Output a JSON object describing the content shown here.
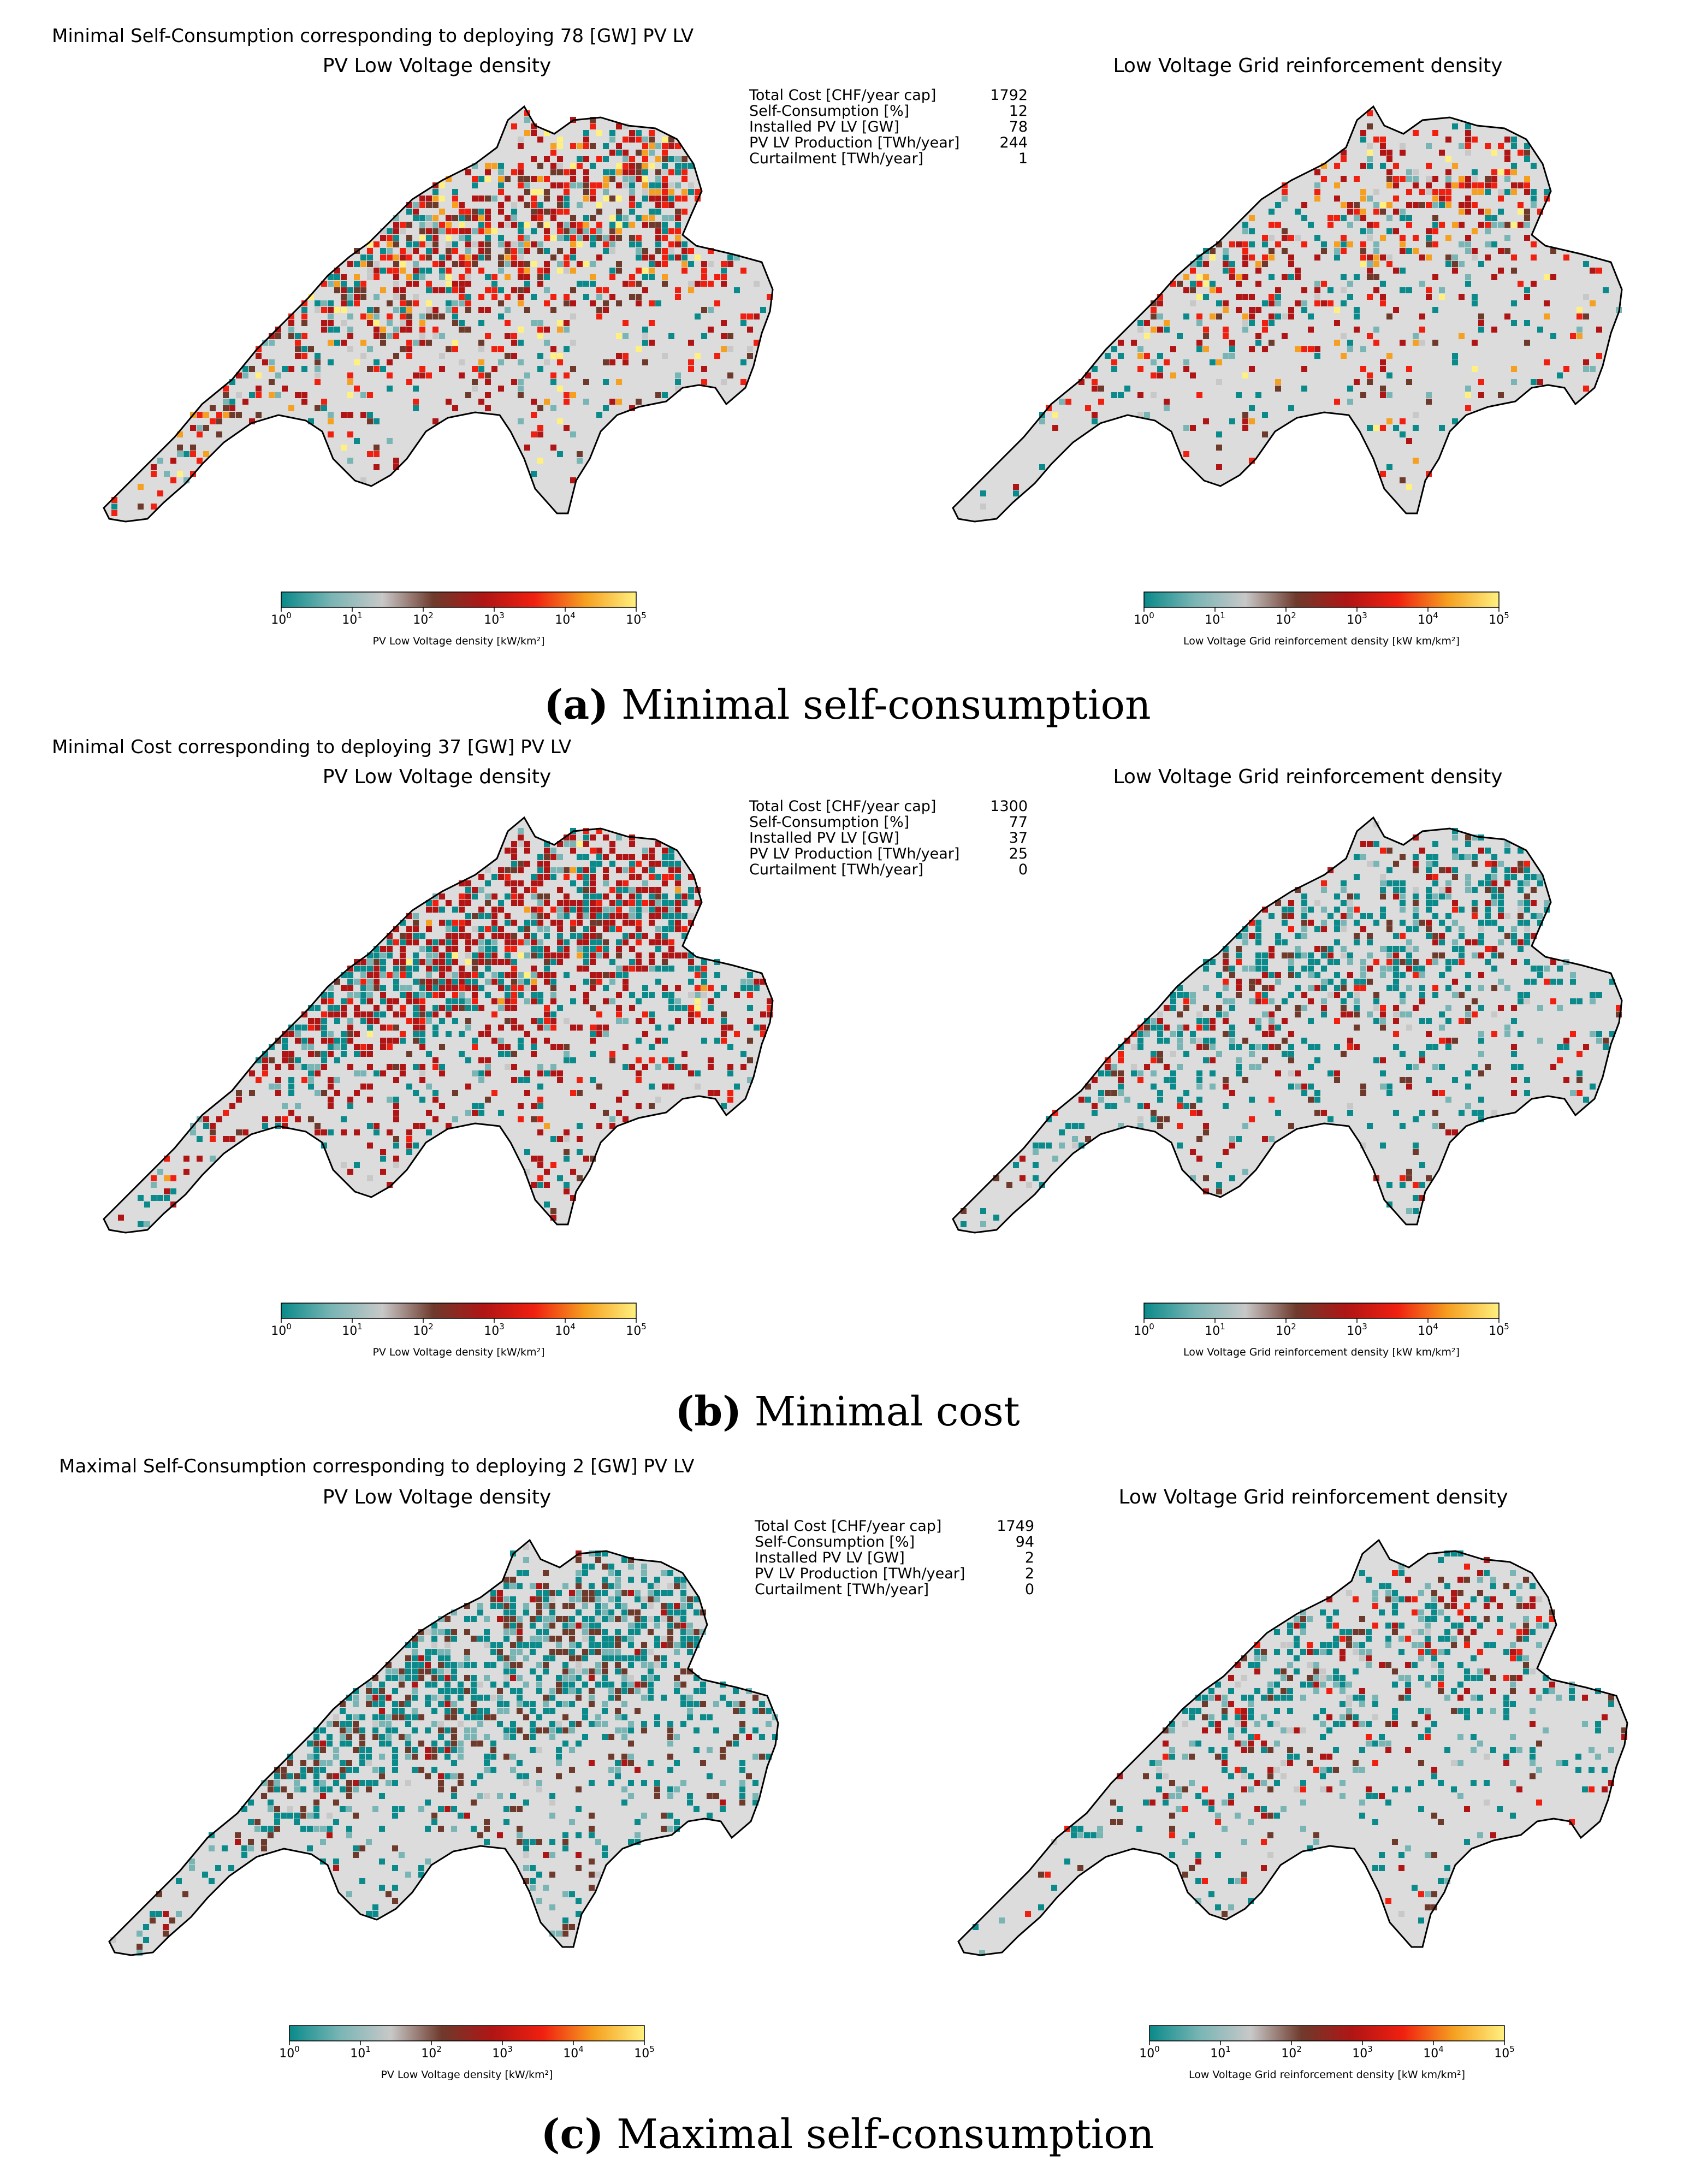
{
  "legend": {
    "pv_label": "PV Low Voltage density [kW/km²]",
    "grid_label": "Low Voltage Grid reinforcement density [kW km/km²]",
    "ticks": [
      {
        "base": "10",
        "exp": "0"
      },
      {
        "base": "10",
        "exp": "1"
      },
      {
        "base": "10",
        "exp": "2"
      },
      {
        "base": "10",
        "exp": "3"
      },
      {
        "base": "10",
        "exp": "4"
      },
      {
        "base": "10",
        "exp": "5"
      }
    ],
    "colorscale": [
      "#0a8a8a",
      "#7ab5b5",
      "#c8c8c8",
      "#6e3a2c",
      "#b01515",
      "#f02010",
      "#f5a020",
      "#fff080"
    ],
    "land_color": "#dcdcdc",
    "border_color": "#000000"
  },
  "panels": [
    {
      "suptitle": "Minimal Self-Consumption corresponding to deploying 78 [GW] PV LV",
      "left_title": "PV Low Voltage density",
      "right_title": "Low Voltage Grid reinforcement density",
      "stats": [
        {
          "label": "Total Cost [CHF/year cap]",
          "value": "1792"
        },
        {
          "label": "Self-Consumption [%]",
          "value": "12"
        },
        {
          "label": "Installed PV LV [GW]",
          "value": "78"
        },
        {
          "label": "PV LV Production [TWh/year]",
          "value": "244"
        },
        {
          "label": "Curtailment [TWh/year]",
          "value": "1"
        }
      ],
      "caption_letter": "(a)",
      "caption_text": "Minimal self-consumption"
    },
    {
      "suptitle": "Minimal Cost corresponding to deploying 37 [GW] PV LV",
      "left_title": "PV Low Voltage density",
      "right_title": "Low Voltage Grid reinforcement density",
      "stats": [
        {
          "label": "Total Cost [CHF/year cap]",
          "value": "1300"
        },
        {
          "label": "Self-Consumption [%]",
          "value": "77"
        },
        {
          "label": "Installed PV LV [GW]",
          "value": "37"
        },
        {
          "label": "PV LV Production [TWh/year]",
          "value": "25"
        },
        {
          "label": "Curtailment [TWh/year]",
          "value": "0"
        }
      ],
      "caption_letter": "(b)",
      "caption_text": "Minimal cost"
    },
    {
      "suptitle": "Maximal Self-Consumption corresponding to deploying 2 [GW] PV LV",
      "left_title": "PV Low Voltage density",
      "right_title": "Low Voltage Grid reinforcement density",
      "stats": [
        {
          "label": "Total Cost [CHF/year cap]",
          "value": "1749"
        },
        {
          "label": "Self-Consumption [%]",
          "value": "94"
        },
        {
          "label": "Installed PV LV [GW]",
          "value": "2"
        },
        {
          "label": "PV LV Production [TWh/year]",
          "value": "2"
        },
        {
          "label": "Curtailment [TWh/year]",
          "value": "0"
        }
      ],
      "caption_letter": "(c)",
      "caption_text": "Maximal self-consumption"
    }
  ],
  "chart_data": [
    {
      "type": "heatmap",
      "title": "Minimal Self-Consumption corresponding to deploying 78 [GW] PV LV",
      "maps": [
        {
          "title": "PV Low Voltage density",
          "colorbar_label": "PV Low Voltage density [kW/km²]",
          "scale": "log",
          "range": [
            1,
            100000
          ]
        },
        {
          "title": "Low Voltage Grid reinforcement density",
          "colorbar_label": "Low Voltage Grid reinforcement density [kW km/km²]",
          "scale": "log",
          "range": [
            1,
            100000
          ]
        }
      ],
      "summary": {
        "Total Cost [CHF/year cap]": 1792,
        "Self-Consumption [%]": 12,
        "Installed PV LV [GW]": 78,
        "PV LV Production [TWh/year]": 244,
        "Curtailment [TWh/year]": 1
      }
    },
    {
      "type": "heatmap",
      "title": "Minimal Cost corresponding to deploying 37 [GW] PV LV",
      "maps": [
        {
          "title": "PV Low Voltage density",
          "colorbar_label": "PV Low Voltage density [kW/km²]",
          "scale": "log",
          "range": [
            1,
            100000
          ]
        },
        {
          "title": "Low Voltage Grid reinforcement density",
          "colorbar_label": "Low Voltage Grid reinforcement density [kW km/km²]",
          "scale": "log",
          "range": [
            1,
            100000
          ]
        }
      ],
      "summary": {
        "Total Cost [CHF/year cap]": 1300,
        "Self-Consumption [%]": 77,
        "Installed PV LV [GW]": 37,
        "PV LV Production [TWh/year]": 25,
        "Curtailment [TWh/year]": 0
      }
    },
    {
      "type": "heatmap",
      "title": "Maximal Self-Consumption corresponding to deploying 2 [GW] PV LV",
      "maps": [
        {
          "title": "PV Low Voltage density",
          "colorbar_label": "PV Low Voltage density [kW/km²]",
          "scale": "log",
          "range": [
            1,
            100000
          ]
        },
        {
          "title": "Low Voltage Grid reinforcement density",
          "colorbar_label": "Low Voltage Grid reinforcement density [kW km/km²]",
          "scale": "log",
          "range": [
            1,
            100000
          ]
        }
      ],
      "summary": {
        "Total Cost [CHF/year cap]": 1749,
        "Self-Consumption [%]": 94,
        "Installed PV LV [GW]": 2,
        "PV LV Production [TWh/year]": 2,
        "Curtailment [TWh/year]": 0
      }
    }
  ]
}
